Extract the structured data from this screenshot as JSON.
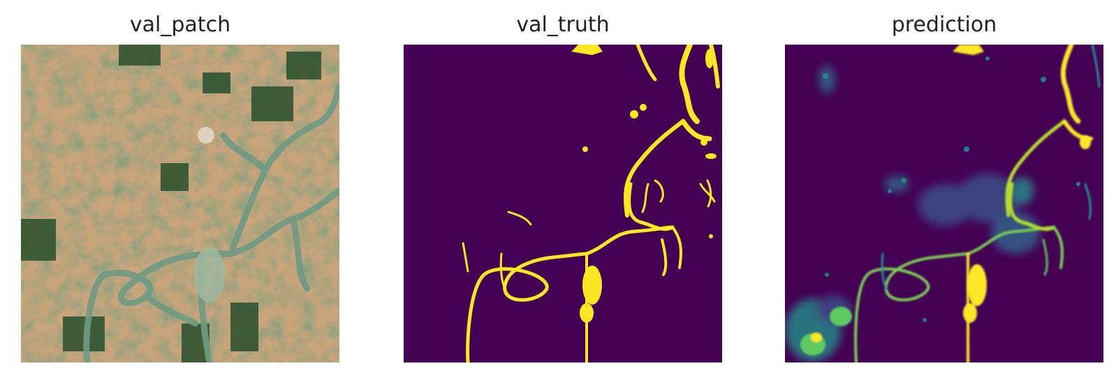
{
  "panels": [
    {
      "title": "val_patch",
      "kind": "satellite-rgb"
    },
    {
      "title": "val_truth",
      "kind": "binary-mask"
    },
    {
      "title": "prediction",
      "kind": "probability-map"
    }
  ],
  "colors": {
    "mask_background": "#440154",
    "mask_water": "#fde725",
    "pred_mid": "#21918c",
    "pred_low": "#3b528b",
    "pred_green": "#5ec962",
    "sat_tan": "#c9a57c",
    "sat_green": "#2f5a34",
    "sat_river": "#6d9a82"
  }
}
